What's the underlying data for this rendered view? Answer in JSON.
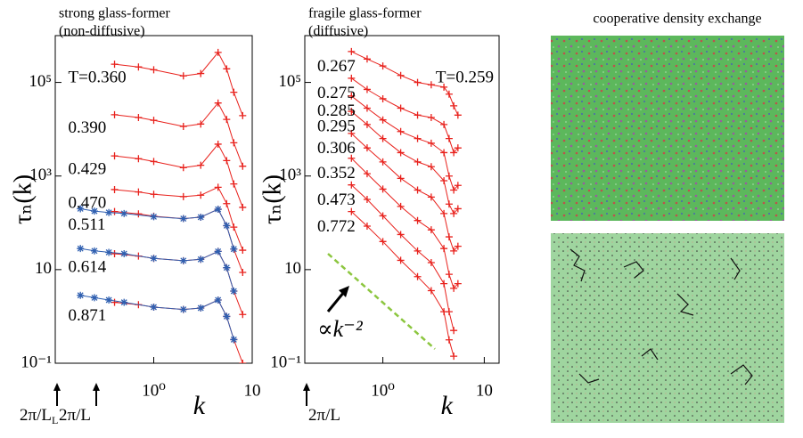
{
  "chart_data": [
    {
      "type": "line",
      "title": "strong glass-former",
      "subtitle": "(non-diffusive)",
      "xlabel": "k",
      "ylabel": "τₙ(k)",
      "log_x": true,
      "log_y": true,
      "xlim": [
        0.1,
        10
      ],
      "ylim": [
        0.1,
        1000000
      ],
      "xticks": [
        {
          "value": 1,
          "label": "10⁰"
        },
        10
      ],
      "yticks": [
        {
          "value": 0.1,
          "label": "10⁻¹"
        },
        10,
        {
          "value": 1000,
          "label": "10³"
        },
        {
          "value": 100000,
          "label": "10⁵"
        }
      ],
      "x": [
        0.4,
        0.7,
        1,
        2,
        3,
        4.5,
        5.5,
        6.5,
        8
      ],
      "series": [
        {
          "name": "T=0.360",
          "color": "#e8211c",
          "marker": "+",
          "values": [
            245000,
            214000,
            186000,
            138000,
            155000,
            437000,
            195000,
            61700,
            19500
          ]
        },
        {
          "name": "0.390",
          "color": "#e8211c",
          "marker": "+",
          "values": [
            20400,
            17800,
            15500,
            11500,
            12900,
            36300,
            16200,
            5130,
            1620
          ]
        },
        {
          "name": "0.429",
          "color": "#e8211c",
          "marker": "+",
          "values": [
            2690,
            2340,
            2040,
            1510,
            1700,
            4790,
            2140,
            676,
            214
          ]
        },
        {
          "name": "0.470",
          "color": "#e8211c",
          "marker": "+",
          "values": [
            513,
            457,
            407,
            363,
            389,
            575,
            257,
            81,
            26
          ]
        },
        {
          "name": "0.511",
          "color": "#e8211c",
          "marker": "+",
          "values": [
            174,
            155,
            138,
            123,
            132,
            195,
            87,
            27.5,
            8.7
          ]
        },
        {
          "name": "0.614",
          "color": "#e8211c",
          "marker": "+",
          "values": [
            21.9,
            19.5,
            17.4,
            15.5,
            16.6,
            24.5,
            11,
            3.47,
            1.1
          ]
        },
        {
          "name": "0.871",
          "color": "#e8211c",
          "marker": "+",
          "values": [
            2,
            1.78,
            1.58,
            1.41,
            1.51,
            2.24,
            1,
            0.32,
            0.1
          ]
        },
        {
          "color": "#2f5fb0",
          "marker": "*",
          "x": [
            0.18,
            0.25,
            0.35,
            0.5,
            1,
            2,
            3,
            4.5,
            5.5,
            6.5
          ],
          "values": [
            200,
            178,
            166,
            158,
            135,
            123,
            132,
            195,
            87,
            27.5
          ]
        },
        {
          "color": "#2f5fb0",
          "marker": "*",
          "x": [
            0.18,
            0.25,
            0.35,
            0.5,
            1,
            2,
            3,
            4.5,
            5.5,
            6.5
          ],
          "values": [
            28.2,
            25.1,
            23.4,
            21.9,
            17.4,
            15.5,
            16.6,
            24.5,
            11,
            3.47
          ]
        },
        {
          "color": "#2f5fb0",
          "marker": "*",
          "x": [
            0.18,
            0.25,
            0.35,
            0.5,
            1,
            2,
            3,
            4.5,
            5.5,
            6.5
          ],
          "values": [
            2.82,
            2.51,
            2.24,
            2,
            1.58,
            1.41,
            1.51,
            2.24,
            1,
            0.32
          ]
        }
      ],
      "annotations": [
        {
          "text": "2π/L",
          "sub": "L"
        },
        {
          "text": "2π/L"
        }
      ]
    },
    {
      "type": "line",
      "title": "fragile glass-former",
      "subtitle": "(diffusive)",
      "xlabel": "k",
      "ylabel": "τₙ(k)",
      "log_x": true,
      "log_y": true,
      "xlim": [
        0.17,
        14
      ],
      "ylim": [
        0.1,
        1000000
      ],
      "xticks": [
        {
          "value": 1,
          "label": "10⁰"
        },
        10
      ],
      "yticks": [
        {
          "value": 0.1,
          "label": "10⁻¹"
        },
        10,
        {
          "value": 1000,
          "label": "10³"
        },
        {
          "value": 100000,
          "label": "10⁵"
        }
      ],
      "x": [
        0.49,
        0.7,
        1,
        1.5,
        2.2,
        3,
        4,
        4.5,
        5,
        5.5
      ],
      "series": [
        {
          "name": "0.267",
          "color": "#e8211c",
          "marker": "+",
          "values": [
            457000,
            316000,
            224000,
            141000,
            100000,
            89100,
            79400,
            56200,
            31600,
            20000
          ]
        },
        {
          "name": "0.275",
          "color": "#e8211c",
          "marker": "+",
          "values": [
            123000,
            70800,
            44700,
            28200,
            20000,
            17800,
            12600,
            6310,
            3160,
            3980
          ]
        },
        {
          "name": "0.285",
          "color": "#e8211c",
          "marker": "+",
          "values": [
            51300,
            28200,
            15800,
            8910,
            6310,
            5010,
            3160,
            1000,
            501,
            631
          ]
        },
        {
          "name": "0.295",
          "color": "#e8211c",
          "marker": "+",
          "values": [
            24000,
            12600,
            6310,
            3160,
            2000,
            1580,
            794,
            251,
            158,
            200
          ]
        },
        {
          "name": "0.306",
          "color": "#e8211c",
          "marker": "+",
          "values": [
            8130,
            3980,
            2000,
            891,
            501,
            355,
            158,
            50.1,
            25.1,
            31.6
          ]
        },
        {
          "name": "0.352",
          "color": "#e8211c",
          "marker": "+",
          "values": [
            2400,
            1120,
            525,
            224,
            112,
            70.8,
            28.2,
            7.94,
            3.98,
            5.01
          ]
        },
        {
          "name": "0.473",
          "color": "#e8211c",
          "marker": "+",
          "values": [
            646,
            316,
            141,
            56.2,
            25.1,
            14.1,
            5.01,
            1.26,
            0.501,
            null
          ]
        },
        {
          "name": "0.772",
          "color": "#e8211c",
          "marker": "+",
          "values": [
            174,
            85.1,
            39.8,
            15.8,
            7.08,
            3.55,
            1.26,
            0.316,
            0.141,
            null
          ]
        }
      ],
      "annotations": [
        {
          "text": "T=0.259"
        },
        {
          "text": "∝k⁻²",
          "color": "#8cc63f"
        },
        {
          "text": "2π/L"
        }
      ]
    }
  ],
  "image_panel": {
    "title": "cooperative density exchange"
  }
}
